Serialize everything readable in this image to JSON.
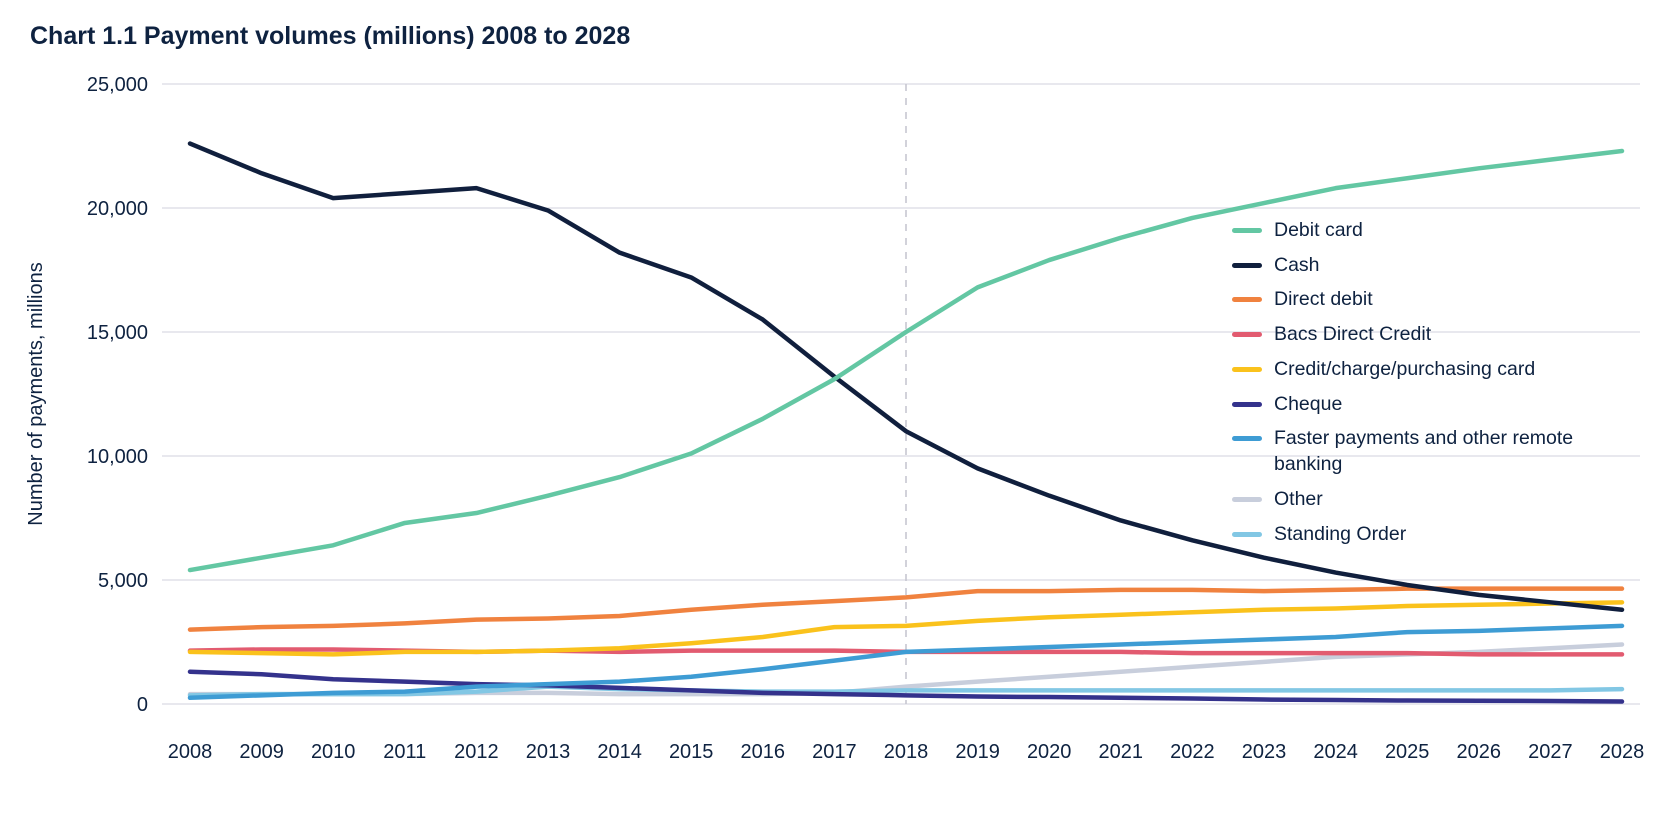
{
  "chart": {
    "title": "Chart 1.1 Payment volumes (millions) 2008 to 2028",
    "ylabel": "Number of payments, millions"
  },
  "chart_data": {
    "type": "line",
    "title": "Chart 1.1 Payment volumes (millions) 2008 to 2028",
    "xlabel": "",
    "ylabel": "Number of payments, millions",
    "x": [
      2008,
      2009,
      2010,
      2011,
      2012,
      2013,
      2014,
      2015,
      2016,
      2017,
      2018,
      2019,
      2020,
      2021,
      2022,
      2023,
      2024,
      2025,
      2026,
      2027,
      2028
    ],
    "ylim": [
      0,
      25000
    ],
    "ytick_interval": 5000,
    "ytick_labels": [
      "0",
      "5,000",
      "10,000",
      "15,000",
      "20,000",
      "25,000"
    ],
    "grid": true,
    "legend_position": "right-inside",
    "forecast_divider_x": 2018,
    "colors": {
      "text": "#0E2240",
      "gridline": "#DADAE3",
      "divider": "#C4C4CE"
    },
    "series": [
      {
        "name": "Debit card",
        "color": "#63C7A3",
        "values": [
          5400,
          5900,
          6400,
          7300,
          7700,
          8400,
          9150,
          10100,
          11500,
          13100,
          15000,
          16800,
          17900,
          18800,
          19600,
          20200,
          20800,
          21200,
          21600,
          21950,
          22300
        ]
      },
      {
        "name": "Cash",
        "color": "#101F3D",
        "values": [
          22600,
          21400,
          20400,
          20600,
          20800,
          19900,
          18200,
          17200,
          15500,
          13200,
          11000,
          9500,
          8400,
          7400,
          6600,
          5900,
          5300,
          4800,
          4400,
          4100,
          3800
        ]
      },
      {
        "name": "Direct debit",
        "color": "#F0823F",
        "values": [
          3000,
          3100,
          3150,
          3250,
          3400,
          3450,
          3550,
          3800,
          4000,
          4150,
          4300,
          4550,
          4550,
          4600,
          4600,
          4550,
          4600,
          4650,
          4650,
          4650,
          4650
        ]
      },
      {
        "name": "Bacs Direct Credit",
        "color": "#E25B70",
        "values": [
          2150,
          2200,
          2200,
          2150,
          2100,
          2150,
          2100,
          2150,
          2150,
          2150,
          2100,
          2100,
          2100,
          2100,
          2050,
          2050,
          2050,
          2050,
          2000,
          2000,
          2000
        ]
      },
      {
        "name": "Credit/charge/purchasing card",
        "color": "#FAC21C",
        "values": [
          2100,
          2050,
          2000,
          2100,
          2100,
          2150,
          2250,
          2450,
          2700,
          3100,
          3150,
          3350,
          3500,
          3600,
          3700,
          3800,
          3850,
          3950,
          4000,
          4050,
          4100
        ]
      },
      {
        "name": "Cheque",
        "color": "#34328C",
        "values": [
          1300,
          1200,
          1000,
          900,
          800,
          750,
          650,
          550,
          450,
          400,
          350,
          300,
          280,
          250,
          220,
          180,
          160,
          140,
          130,
          120,
          100
        ]
      },
      {
        "name": "Faster payments and other remote banking",
        "color": "#3E9CD4",
        "values": [
          250,
          350,
          450,
          500,
          700,
          800,
          900,
          1100,
          1400,
          1750,
          2100,
          2200,
          2300,
          2400,
          2500,
          2600,
          2700,
          2900,
          2950,
          3050,
          3150
        ]
      },
      {
        "name": "Other",
        "color": "#C8CEDC",
        "values": [
          400,
          400,
          400,
          400,
          450,
          450,
          400,
          400,
          400,
          450,
          700,
          900,
          1100,
          1300,
          1500,
          1700,
          1900,
          2000,
          2100,
          2250,
          2400
        ]
      },
      {
        "name": "Standing Order",
        "color": "#82C7E4",
        "values": [
          350,
          400,
          400,
          400,
          500,
          700,
          600,
          550,
          500,
          500,
          550,
          550,
          550,
          550,
          550,
          550,
          550,
          550,
          550,
          550,
          600
        ]
      }
    ],
    "draw_order": [
      "Other",
      "Standing Order",
      "Cheque",
      "Bacs Direct Credit",
      "Credit/charge/purchasing card",
      "Faster payments and other remote banking",
      "Direct debit",
      "Cash",
      "Debit card"
    ]
  }
}
